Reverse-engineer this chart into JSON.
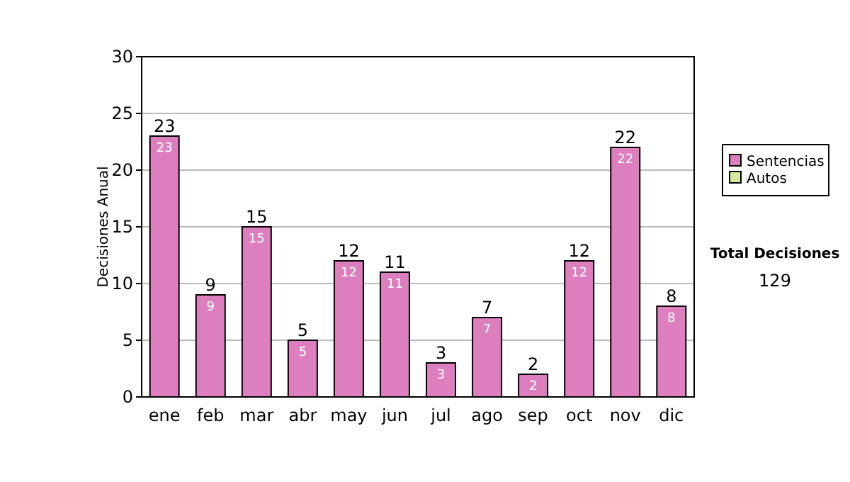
{
  "chart_data": {
    "type": "bar",
    "stacked": true,
    "ylabel": "Decisiones Anual",
    "categories": [
      "ene",
      "feb",
      "mar",
      "abr",
      "may",
      "jun",
      "jul",
      "ago",
      "sep",
      "oct",
      "nov",
      "dic"
    ],
    "series": [
      {
        "name": "Sentencias",
        "color": "#dd7fbf",
        "values": [
          23,
          9,
          15,
          5,
          12,
          11,
          3,
          7,
          2,
          12,
          22,
          8
        ],
        "value_labels": [
          "23",
          "9",
          "15",
          "5",
          "12",
          "11",
          "3",
          "7",
          "2",
          "12",
          "22",
          "8"
        ]
      },
      {
        "name": "Autos",
        "color": "#d6e89c",
        "values": [
          0,
          0,
          0,
          0,
          0,
          0,
          0,
          0,
          0,
          0,
          0,
          0
        ]
      }
    ],
    "totals": [
      "23",
      "9",
      "15",
      "5",
      "12",
      "11",
      "3",
      "7",
      "2",
      "12",
      "22",
      "8"
    ],
    "ylim": [
      0,
      30
    ],
    "yticks": [
      0,
      5,
      10,
      15,
      20,
      25,
      30
    ],
    "grid": "y",
    "legend": "right",
    "annotations": [
      "Total Decisiones",
      "129"
    ]
  }
}
